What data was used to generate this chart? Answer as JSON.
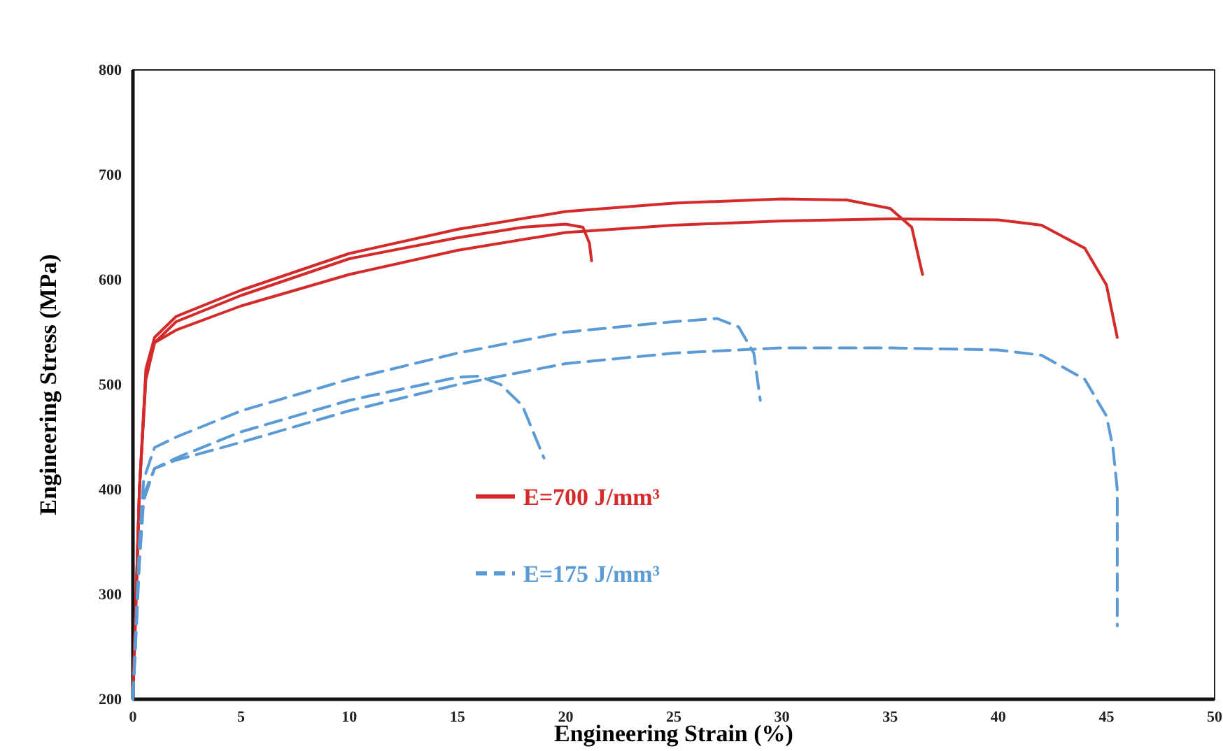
{
  "chart_data": {
    "type": "line",
    "xlabel": "Engineering Strain (%)",
    "ylabel": "Engineering Stress (MPa)",
    "xlim": [
      0,
      50
    ],
    "xticks": [
      0,
      5,
      10,
      15,
      20,
      25,
      30,
      35,
      40,
      45,
      50
    ],
    "ylim": [
      200,
      800
    ],
    "yticks": [
      200,
      300,
      400,
      500,
      600,
      700,
      800
    ],
    "grid": false,
    "legend": "bottom",
    "marker": "none",
    "series": [
      {
        "name": "E=700 J/mm³",
        "color": "#d42a2a",
        "line_style": "solid",
        "x": [
          0,
          0.3,
          0.6,
          1,
          2,
          5,
          10,
          15,
          18,
          20,
          20.8,
          21.1,
          21.2
        ],
        "values": [
          200,
          400,
          510,
          540,
          560,
          585,
          620,
          640,
          650,
          653,
          650,
          635,
          618
        ]
      },
      {
        "color": "#d42a2a",
        "line_style": "solid",
        "x": [
          0,
          0.3,
          0.6,
          1,
          2,
          5,
          10,
          15,
          20,
          25,
          30,
          33,
          35,
          36,
          36.5
        ],
        "values": [
          200,
          400,
          515,
          545,
          565,
          590,
          625,
          648,
          665,
          673,
          677,
          676,
          668,
          650,
          605
        ]
      },
      {
        "color": "#d42a2a",
        "line_style": "solid",
        "x": [
          0,
          0.3,
          0.6,
          1,
          2,
          5,
          10,
          15,
          20,
          25,
          30,
          35,
          40,
          42,
          44,
          45,
          45.5
        ],
        "values": [
          200,
          400,
          505,
          540,
          552,
          575,
          605,
          628,
          645,
          652,
          656,
          658,
          657,
          652,
          630,
          595,
          545
        ]
      },
      {
        "name": "E=175 J/mm³",
        "color": "#5b9bd5",
        "line_style": "dashed",
        "x": [
          0,
          0.3,
          0.5,
          1,
          2,
          5,
          10,
          15,
          16,
          17,
          18,
          18.5,
          19
        ],
        "values": [
          200,
          340,
          395,
          420,
          430,
          455,
          485,
          507,
          508,
          500,
          480,
          455,
          430
        ]
      },
      {
        "color": "#5b9bd5",
        "line_style": "dashed",
        "x": [
          0,
          0.3,
          0.5,
          1,
          2,
          5,
          10,
          15,
          20,
          25,
          27,
          28,
          28.7,
          29
        ],
        "values": [
          200,
          350,
          410,
          440,
          450,
          475,
          505,
          530,
          550,
          560,
          563,
          555,
          530,
          485
        ]
      },
      {
        "color": "#5b9bd5",
        "line_style": "dashed",
        "x": [
          0,
          0.3,
          0.5,
          1,
          2,
          5,
          10,
          15,
          20,
          25,
          30,
          35,
          40,
          42,
          44,
          45,
          45.3,
          45.5,
          45.5
        ],
        "values": [
          200,
          330,
          390,
          420,
          428,
          445,
          475,
          500,
          520,
          530,
          535,
          535,
          533,
          528,
          505,
          470,
          440,
          400,
          270
        ]
      }
    ]
  }
}
